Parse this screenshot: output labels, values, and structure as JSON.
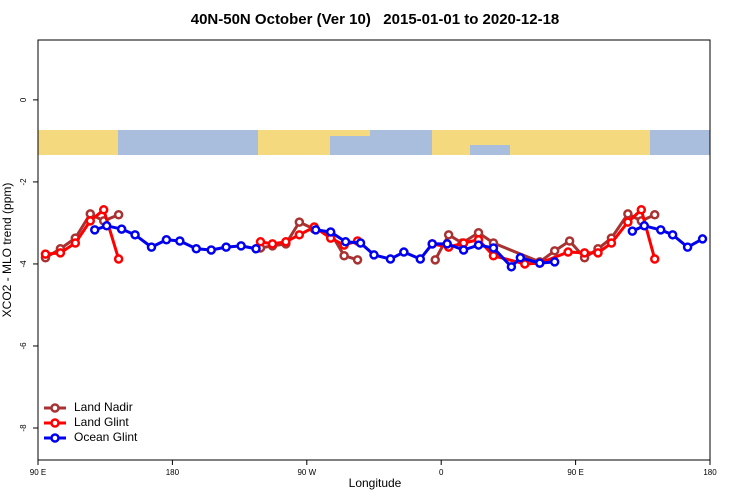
{
  "chart_data": {
    "type": "line",
    "title": "40N-50N October (Ver 10)   2015-01-01 to 2020-12-18",
    "xlabel": "Longitude",
    "ylabel": "XCO2 - MLO trend (ppm)",
    "xlim": [
      90,
      540
    ],
    "ylim": [
      -8.78,
      1.46
    ],
    "xticks": [
      {
        "value": 90,
        "label": "90 E"
      },
      180,
      {
        "value": 270,
        "label": "90 W"
      },
      {
        "value": 360,
        "label": "0"
      },
      {
        "value": 450,
        "label": "90 E"
      },
      {
        "value": 540,
        "label": "180"
      }
    ],
    "yticks": [
      0,
      -2,
      -4,
      -6,
      -8
    ],
    "legend": "bottom-left",
    "series": [
      {
        "name": "Land Nadir",
        "color": "#a83232",
        "x": [
          95,
          105,
          115,
          125,
          134,
          144,
          null,
          239,
          247,
          256,
          265,
          275,
          286,
          295,
          304,
          null,
          356,
          365,
          374,
          385,
          395,
          426,
          436,
          446,
          456,
          465,
          474,
          485,
          494,
          503
        ],
        "values": [
          -3.85,
          -3.63,
          -3.37,
          -2.78,
          -2.95,
          -2.8,
          null,
          -3.61,
          -3.56,
          -3.51,
          -2.98,
          -3.15,
          -3.24,
          -3.8,
          -3.9,
          null,
          -3.9,
          -3.29,
          -3.49,
          -3.24,
          -3.49,
          -3.95,
          -3.68,
          -3.44,
          -3.85,
          -3.63,
          -3.37,
          -2.78,
          -2.95,
          -2.8
        ]
      },
      {
        "name": "Land Glint",
        "color": "#ff0000",
        "x": [
          95,
          105,
          115,
          125,
          134,
          144,
          null,
          239,
          247,
          256,
          265,
          275,
          286,
          295,
          304,
          null,
          354,
          365,
          375,
          385,
          395,
          416,
          426,
          445,
          456,
          465,
          474,
          485,
          494,
          503
        ],
        "values": [
          -3.76,
          -3.73,
          -3.49,
          -2.95,
          -2.68,
          -3.88,
          null,
          -3.46,
          -3.51,
          -3.46,
          -3.29,
          -3.1,
          -3.37,
          -3.54,
          -3.44,
          null,
          -3.51,
          -3.59,
          -3.49,
          -3.41,
          -3.8,
          -4.0,
          -3.98,
          -3.71,
          -3.73,
          -3.73,
          -3.49,
          -2.98,
          -2.68,
          -3.88
        ]
      },
      {
        "name": "Ocean Glint",
        "color": "#0000ee",
        "x": [
          128,
          136,
          146,
          155,
          166,
          176,
          185,
          196,
          206,
          216,
          226,
          236,
          null,
          276,
          286,
          296,
          306,
          315,
          326,
          335,
          346,
          354,
          364,
          375,
          385,
          395,
          407,
          413,
          426,
          436,
          null,
          488,
          496,
          507,
          515,
          525,
          535
        ],
        "values": [
          -3.17,
          -3.07,
          -3.15,
          -3.29,
          -3.59,
          -3.41,
          -3.44,
          -3.63,
          -3.66,
          -3.59,
          -3.56,
          -3.63,
          null,
          -3.17,
          -3.22,
          -3.46,
          -3.49,
          -3.78,
          -3.88,
          -3.71,
          -3.88,
          -3.51,
          -3.51,
          -3.66,
          -3.54,
          -3.61,
          -4.07,
          -3.85,
          -3.98,
          -3.95,
          null,
          -3.2,
          -3.07,
          -3.17,
          -3.29,
          -3.59,
          -3.39
        ]
      }
    ]
  }
}
